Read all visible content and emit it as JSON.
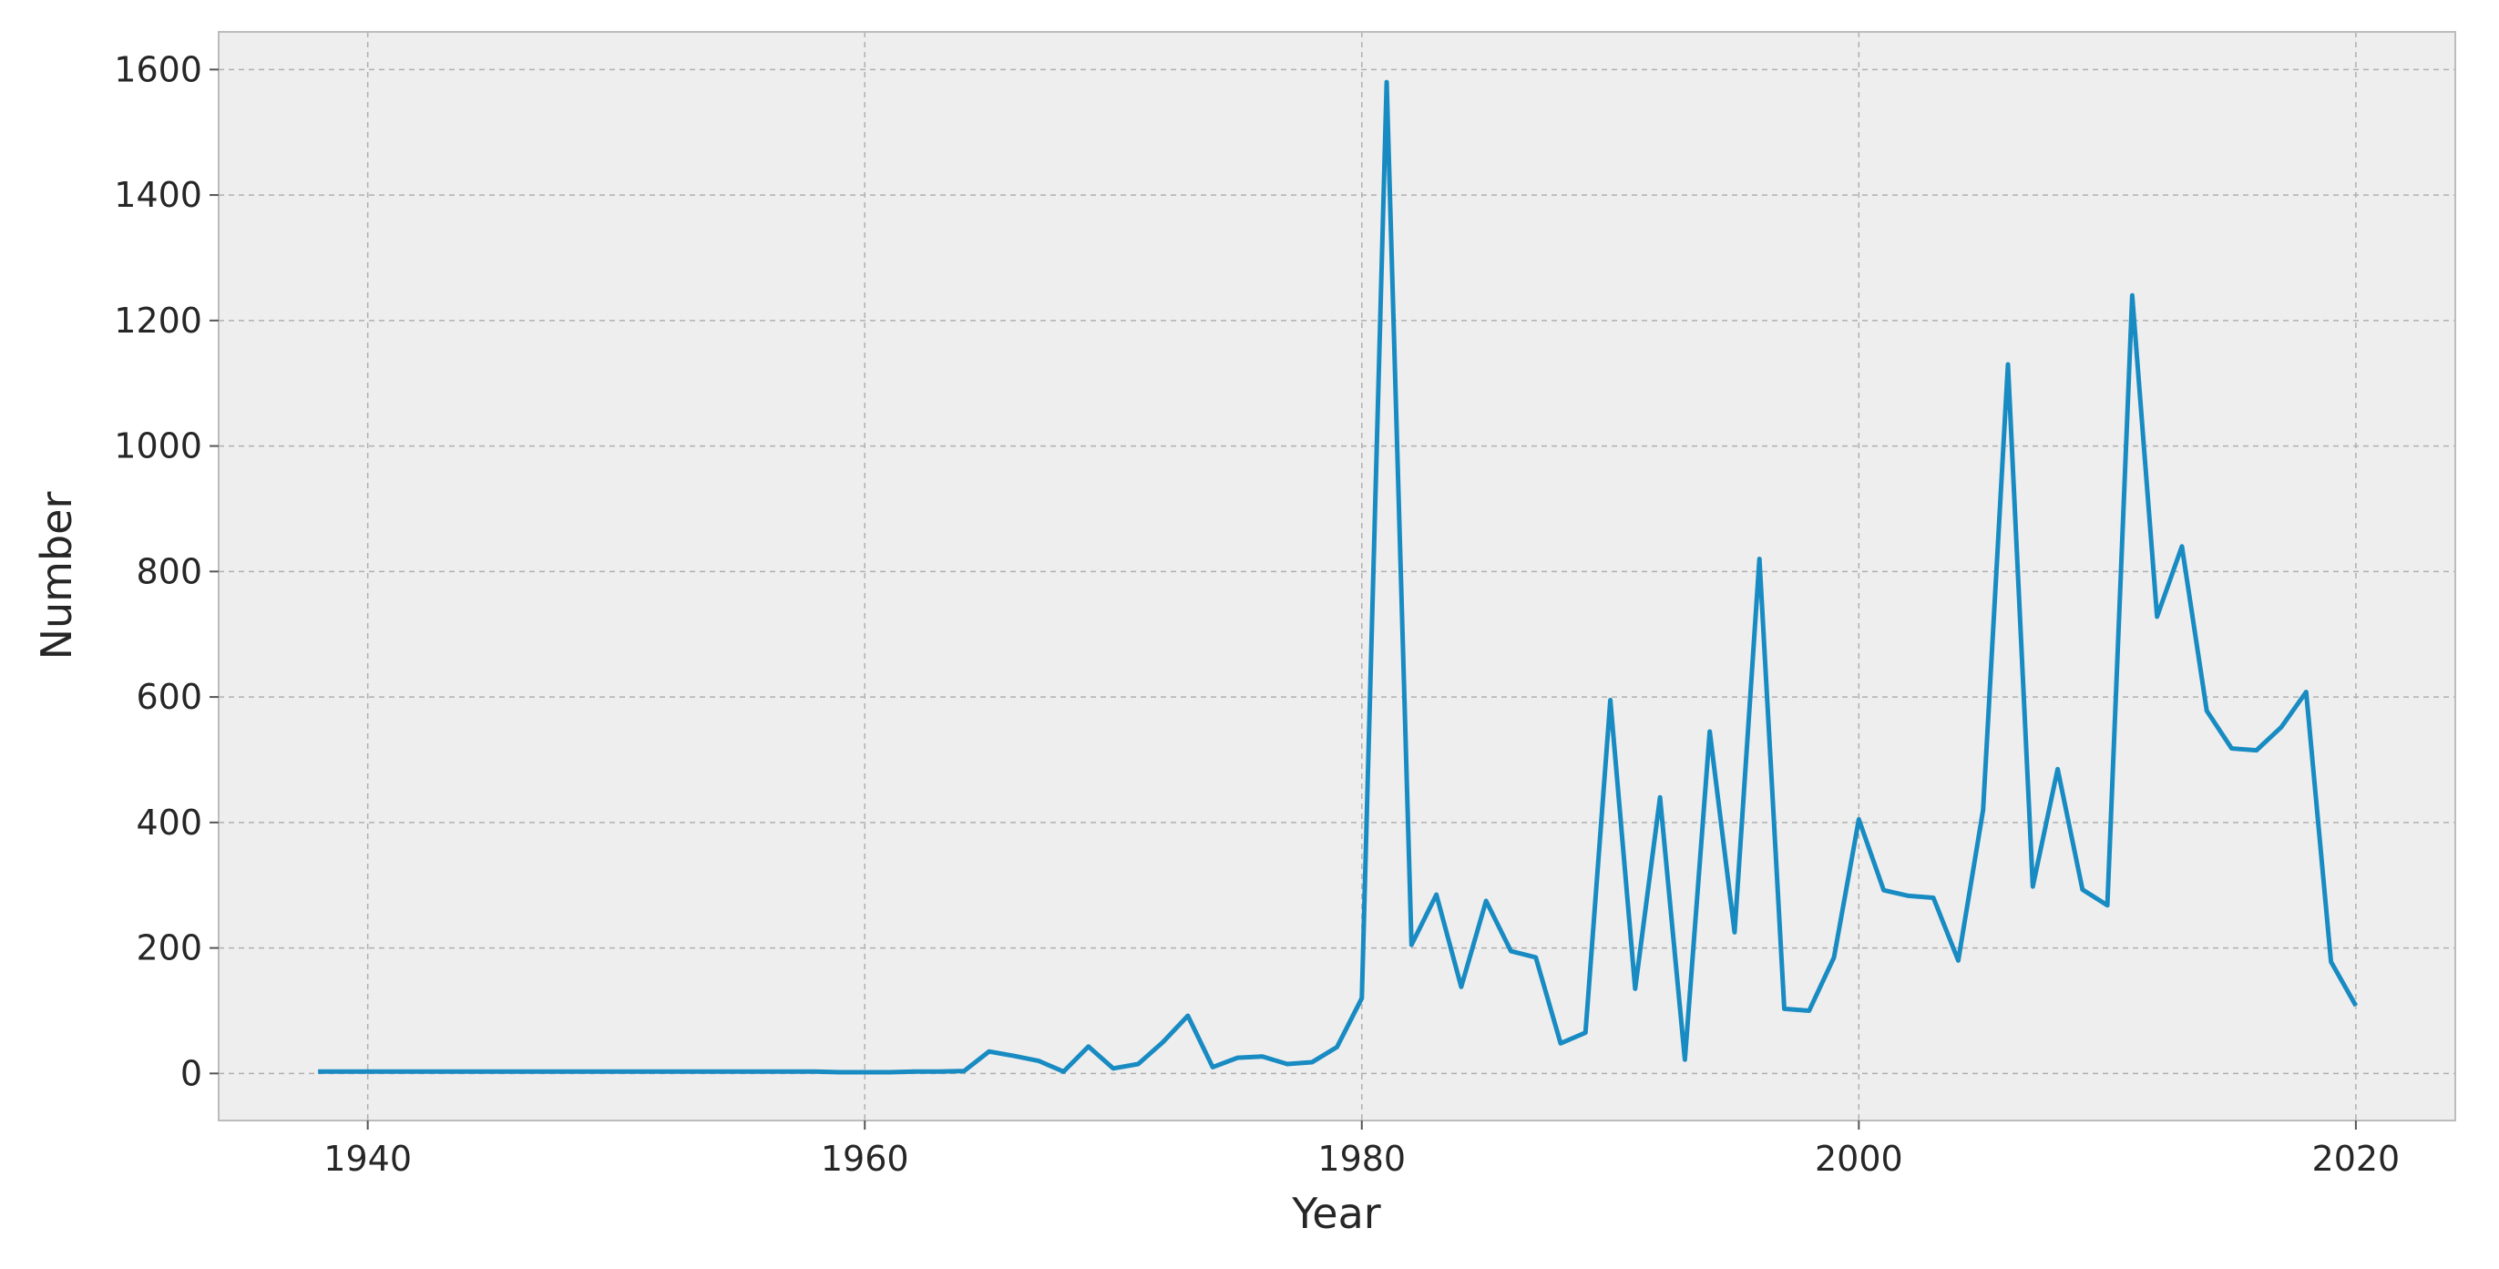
{
  "chart_data": {
    "type": "line",
    "xlabel": "Year",
    "ylabel": "Number",
    "xlim": [
      1934,
      2024
    ],
    "ylim": [
      -75,
      1660
    ],
    "grid": true,
    "x_ticks": [
      1940,
      1960,
      1980,
      2000,
      2020
    ],
    "y_ticks": [
      0,
      200,
      400,
      600,
      800,
      1000,
      1200,
      1400,
      1600
    ],
    "colors": {
      "line": "#188bc2",
      "plot_background": "#eeeeee",
      "grid": "#b0b0b0",
      "frame": "#bcbcbc"
    },
    "series": [
      {
        "x": [
          1938,
          1939,
          1940,
          1941,
          1942,
          1943,
          1944,
          1945,
          1946,
          1947,
          1948,
          1949,
          1950,
          1951,
          1952,
          1953,
          1954,
          1955,
          1956,
          1957,
          1958,
          1959,
          1960,
          1961,
          1962,
          1963,
          1964,
          1965,
          1966,
          1967,
          1968,
          1969,
          1970,
          1971,
          1972,
          1973,
          1974,
          1975,
          1976,
          1977,
          1978,
          1979,
          1980,
          1981,
          1982,
          1983,
          1984,
          1985,
          1986,
          1987,
          1988,
          1989,
          1990,
          1991,
          1992,
          1993,
          1994,
          1995,
          1996,
          1997,
          1998,
          1999,
          2000,
          2001,
          2002,
          2003,
          2004,
          2005,
          2006,
          2007,
          2008,
          2009,
          2010,
          2011,
          2012,
          2013,
          2014,
          2015,
          2016,
          2017,
          2018,
          2019,
          2020
        ],
        "values": [
          3,
          3,
          3,
          3,
          3,
          3,
          3,
          3,
          3,
          3,
          3,
          3,
          3,
          3,
          3,
          3,
          3,
          3,
          3,
          3,
          3,
          2,
          2,
          2,
          3,
          3,
          4,
          35,
          28,
          20,
          3,
          43,
          8,
          15,
          50,
          92,
          10,
          25,
          27,
          15,
          18,
          42,
          120,
          1580,
          205,
          285,
          138,
          275,
          195,
          185,
          48,
          65,
          595,
          135,
          440,
          22,
          545,
          225,
          820,
          103,
          100,
          185,
          405,
          292,
          283,
          280,
          180,
          420,
          1130,
          298,
          485,
          293,
          268,
          1240,
          728,
          840,
          578,
          518,
          515,
          552,
          608,
          178,
          108
        ]
      }
    ]
  }
}
